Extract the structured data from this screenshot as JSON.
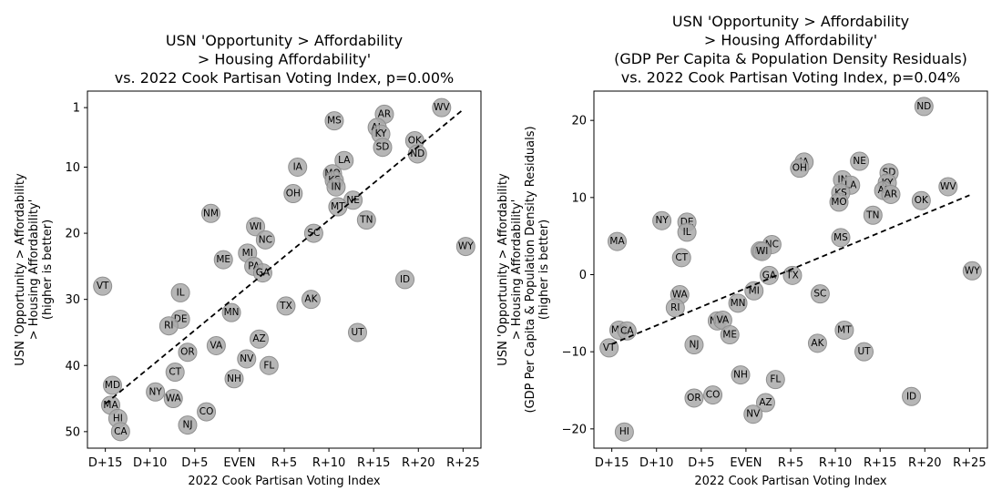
{
  "chart_data": [
    {
      "type": "scatter",
      "title_lines": [
        "USN 'Opportunity > Affordability",
        "> Housing Affordability'",
        "vs. 2022 Cook Partisan Voting Index, p=0.00%"
      ],
      "xlabel": "2022 Cook Partisan Voting Index",
      "ylabel_lines": [
        "USN 'Opportunity > Affordability",
        "> Housing Affordability'",
        "(higher is better)"
      ],
      "xlim": [
        -17,
        27
      ],
      "ylim": [
        52.5,
        -1.5
      ],
      "y_inverted": true,
      "x_ticks": [
        {
          "value": -15,
          "label": "D+15"
        },
        {
          "value": -10,
          "label": "D+10"
        },
        {
          "value": -5,
          "label": "D+5"
        },
        {
          "value": 0,
          "label": "EVEN"
        },
        {
          "value": 5,
          "label": "R+5"
        },
        {
          "value": 10,
          "label": "R+10"
        },
        {
          "value": 15,
          "label": "R+15"
        },
        {
          "value": 20,
          "label": "R+20"
        },
        {
          "value": 25,
          "label": "R+25"
        }
      ],
      "y_ticks": [
        {
          "value": 1,
          "label": "1"
        },
        {
          "value": 10,
          "label": "10"
        },
        {
          "value": 20,
          "label": "20"
        },
        {
          "value": 30,
          "label": "30"
        },
        {
          "value": 40,
          "label": "40"
        },
        {
          "value": 50,
          "label": "50"
        }
      ],
      "trendline": {
        "x": [
          -15,
          25
        ],
        "y": [
          45.8,
          1.3
        ]
      },
      "points": [
        {
          "label": "WV",
          "x": 22.6,
          "y": 1
        },
        {
          "label": "AR",
          "x": 16.2,
          "y": 2
        },
        {
          "label": "MS",
          "x": 10.6,
          "y": 3
        },
        {
          "label": "AL",
          "x": 15.4,
          "y": 4
        },
        {
          "label": "KY",
          "x": 15.8,
          "y": 5
        },
        {
          "label": "OK",
          "x": 19.6,
          "y": 6
        },
        {
          "label": "SD",
          "x": 16.0,
          "y": 7
        },
        {
          "label": "ND",
          "x": 19.9,
          "y": 8
        },
        {
          "label": "LA",
          "x": 11.7,
          "y": 9
        },
        {
          "label": "IA",
          "x": 6.5,
          "y": 10
        },
        {
          "label": "MO",
          "x": 10.4,
          "y": 11
        },
        {
          "label": "KS",
          "x": 10.6,
          "y": 12
        },
        {
          "label": "IN",
          "x": 10.8,
          "y": 13
        },
        {
          "label": "OH",
          "x": 6.0,
          "y": 14
        },
        {
          "label": "NE",
          "x": 12.7,
          "y": 15
        },
        {
          "label": "MT",
          "x": 11.0,
          "y": 16
        },
        {
          "label": "NM",
          "x": -3.2,
          "y": 17
        },
        {
          "label": "TN",
          "x": 14.2,
          "y": 18
        },
        {
          "label": "WI",
          "x": 1.8,
          "y": 19
        },
        {
          "label": "SC",
          "x": 8.3,
          "y": 20
        },
        {
          "label": "NC",
          "x": 2.9,
          "y": 21
        },
        {
          "label": "WY",
          "x": 25.3,
          "y": 22
        },
        {
          "label": "MI",
          "x": 0.9,
          "y": 23
        },
        {
          "label": "ME",
          "x": -1.8,
          "y": 24
        },
        {
          "label": "PA",
          "x": 1.6,
          "y": 25
        },
        {
          "label": "GA",
          "x": 2.6,
          "y": 26
        },
        {
          "label": "ID",
          "x": 18.5,
          "y": 27
        },
        {
          "label": "VT",
          "x": -15.3,
          "y": 28
        },
        {
          "label": "IL",
          "x": -6.6,
          "y": 29
        },
        {
          "label": "AK",
          "x": 8.0,
          "y": 30
        },
        {
          "label": "TX",
          "x": 5.2,
          "y": 31
        },
        {
          "label": "MN",
          "x": -0.9,
          "y": 32
        },
        {
          "label": "DE",
          "x": -6.6,
          "y": 33
        },
        {
          "label": "RI",
          "x": -7.9,
          "y": 34
        },
        {
          "label": "UT",
          "x": 13.2,
          "y": 35
        },
        {
          "label": "AZ",
          "x": 2.2,
          "y": 36
        },
        {
          "label": "VA",
          "x": -2.6,
          "y": 37
        },
        {
          "label": "OR",
          "x": -5.8,
          "y": 38
        },
        {
          "label": "NV",
          "x": 0.8,
          "y": 39
        },
        {
          "label": "FL",
          "x": 3.3,
          "y": 40
        },
        {
          "label": "CT",
          "x": -7.2,
          "y": 41
        },
        {
          "label": "NH",
          "x": -0.6,
          "y": 42
        },
        {
          "label": "MD",
          "x": -14.2,
          "y": 43
        },
        {
          "label": "NY",
          "x": -9.4,
          "y": 44
        },
        {
          "label": "WA",
          "x": -7.4,
          "y": 45
        },
        {
          "label": "MA",
          "x": -14.4,
          "y": 46
        },
        {
          "label": "CO",
          "x": -3.7,
          "y": 47
        },
        {
          "label": "HI",
          "x": -13.6,
          "y": 48
        },
        {
          "label": "NJ",
          "x": -5.8,
          "y": 49
        },
        {
          "label": "CA",
          "x": -13.3,
          "y": 50
        }
      ]
    },
    {
      "type": "scatter",
      "title_lines": [
        "USN 'Opportunity > Affordability",
        "> Housing Affordability'",
        "(GDP Per Capita & Population Density Residuals)",
        "vs. 2022 Cook Partisan Voting Index, p=0.04%"
      ],
      "xlabel": "2022 Cook Partisan Voting Index",
      "ylabel_lines": [
        "USN 'Opportunity > Affordability",
        "> Housing Affordability'",
        "(GDP Per Capita & Population Density Residuals)",
        "(higher is better)"
      ],
      "xlim": [
        -17,
        27
      ],
      "ylim": [
        -22.5,
        23.8
      ],
      "y_inverted": false,
      "x_ticks": [
        {
          "value": -15,
          "label": "D+15"
        },
        {
          "value": -10,
          "label": "D+10"
        },
        {
          "value": -5,
          "label": "D+5"
        },
        {
          "value": 0,
          "label": "EVEN"
        },
        {
          "value": 5,
          "label": "R+5"
        },
        {
          "value": 10,
          "label": "R+10"
        },
        {
          "value": 15,
          "label": "R+15"
        },
        {
          "value": 20,
          "label": "R+20"
        },
        {
          "value": 25,
          "label": "R+25"
        }
      ],
      "y_ticks": [
        {
          "value": -20,
          "label": "−20"
        },
        {
          "value": -10,
          "label": "−10"
        },
        {
          "value": 0,
          "label": "0"
        },
        {
          "value": 10,
          "label": "10"
        },
        {
          "value": 20,
          "label": "20"
        }
      ],
      "trendline": {
        "x": [
          -15,
          25
        ],
        "y": [
          -9.0,
          10.3
        ]
      },
      "points": [
        {
          "label": "ND",
          "x": 19.9,
          "y": 21.8
        },
        {
          "label": "IA",
          "x": 6.5,
          "y": 14.6
        },
        {
          "label": "OH",
          "x": 6.0,
          "y": 13.8
        },
        {
          "label": "NE",
          "x": 12.7,
          "y": 14.7
        },
        {
          "label": "SD",
          "x": 16.0,
          "y": 13.2
        },
        {
          "label": "IN",
          "x": 10.8,
          "y": 12.3
        },
        {
          "label": "KY",
          "x": 15.8,
          "y": 11.9
        },
        {
          "label": "LA",
          "x": 11.7,
          "y": 11.6
        },
        {
          "label": "WV",
          "x": 22.6,
          "y": 11.4
        },
        {
          "label": "AL",
          "x": 15.4,
          "y": 10.9
        },
        {
          "label": "KS",
          "x": 10.6,
          "y": 10.6
        },
        {
          "label": "AR",
          "x": 16.2,
          "y": 10.4
        },
        {
          "label": "OK",
          "x": 19.6,
          "y": 9.6
        },
        {
          "label": "MO",
          "x": 10.4,
          "y": 9.4
        },
        {
          "label": "TN",
          "x": 14.2,
          "y": 7.7
        },
        {
          "label": "NY",
          "x": -9.4,
          "y": 7.0
        },
        {
          "label": "DE",
          "x": -6.6,
          "y": 6.8
        },
        {
          "label": "IL",
          "x": -6.6,
          "y": 5.5
        },
        {
          "label": "MS",
          "x": 10.6,
          "y": 4.8
        },
        {
          "label": "MA",
          "x": -14.4,
          "y": 4.3
        },
        {
          "label": "NC",
          "x": 2.9,
          "y": 3.9
        },
        {
          "label": "PA",
          "x": 1.6,
          "y": 3.1
        },
        {
          "label": "WI",
          "x": 1.8,
          "y": 3.0
        },
        {
          "label": "CT",
          "x": -7.2,
          "y": 2.2
        },
        {
          "label": "WY",
          "x": 25.3,
          "y": 0.5
        },
        {
          "label": "GA",
          "x": 2.6,
          "y": -0.1
        },
        {
          "label": "TX",
          "x": 5.2,
          "y": -0.1
        },
        {
          "label": "MI",
          "x": 0.9,
          "y": -2.1
        },
        {
          "label": "SC",
          "x": 8.3,
          "y": -2.5
        },
        {
          "label": "WA",
          "x": -7.4,
          "y": -2.6
        },
        {
          "label": "MN",
          "x": -0.9,
          "y": -3.7
        },
        {
          "label": "RI",
          "x": -7.9,
          "y": -4.3
        },
        {
          "label": "NM",
          "x": -3.2,
          "y": -6.0
        },
        {
          "label": "VA",
          "x": -2.6,
          "y": -5.9
        },
        {
          "label": "MD",
          "x": -14.2,
          "y": -7.2
        },
        {
          "label": "CA",
          "x": -13.3,
          "y": -7.3
        },
        {
          "label": "MT",
          "x": 11.0,
          "y": -7.2
        },
        {
          "label": "ME",
          "x": -1.8,
          "y": -7.8
        },
        {
          "label": "AK",
          "x": 8.0,
          "y": -8.9
        },
        {
          "label": "NJ",
          "x": -5.8,
          "y": -9.1
        },
        {
          "label": "VT",
          "x": -15.3,
          "y": -9.5
        },
        {
          "label": "UT",
          "x": 13.2,
          "y": -10.0
        },
        {
          "label": "NH",
          "x": -0.6,
          "y": -13.0
        },
        {
          "label": "FL",
          "x": 3.3,
          "y": -13.6
        },
        {
          "label": "OR",
          "x": -5.8,
          "y": -16.0
        },
        {
          "label": "CO",
          "x": -3.7,
          "y": -15.6
        },
        {
          "label": "ID",
          "x": 18.5,
          "y": -15.8
        },
        {
          "label": "AZ",
          "x": 2.2,
          "y": -16.6
        },
        {
          "label": "NV",
          "x": 0.8,
          "y": -18.1
        },
        {
          "label": "HI",
          "x": -13.6,
          "y": -20.4
        }
      ]
    }
  ]
}
